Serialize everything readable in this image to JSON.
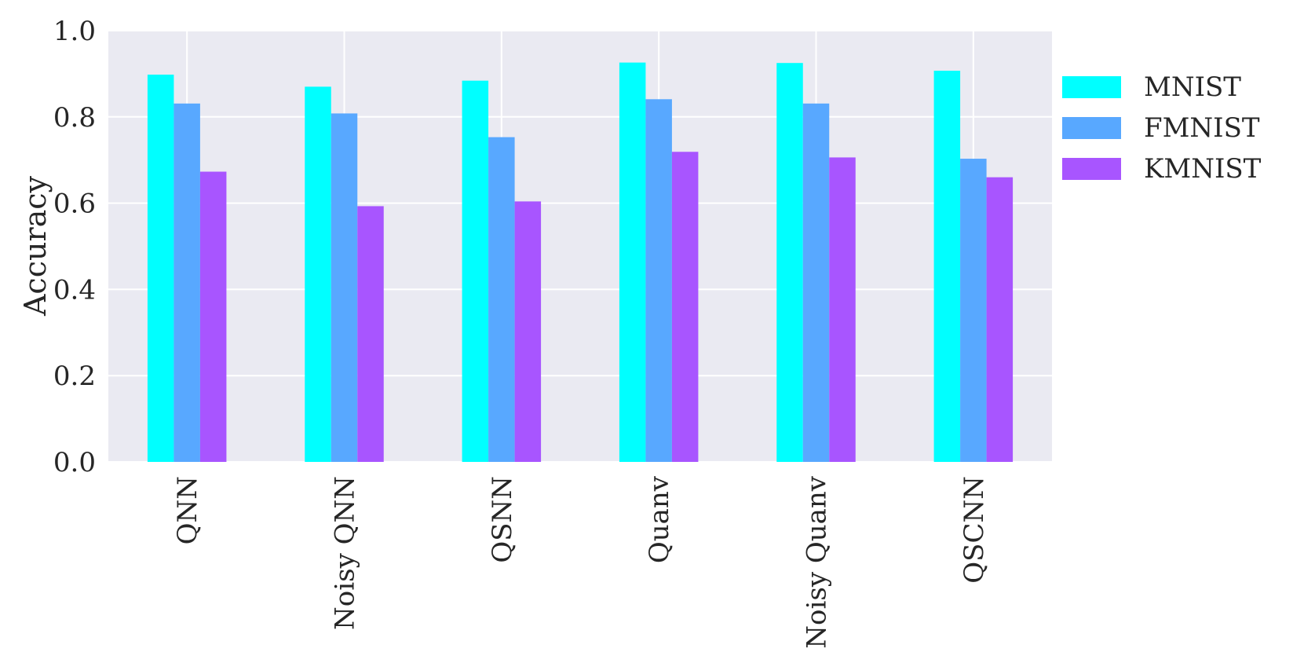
{
  "chart_data": {
    "type": "bar",
    "categories": [
      "QNN",
      "Noisy QNN",
      "QSNN",
      "Quanv",
      "Noisy Quanv",
      "QSCNN"
    ],
    "series": [
      {
        "name": "MNIST",
        "color": "#00ffff",
        "values": [
          0.898,
          0.87,
          0.884,
          0.926,
          0.925,
          0.907
        ]
      },
      {
        "name": "FMNIST",
        "color": "#58a8ff",
        "values": [
          0.831,
          0.808,
          0.753,
          0.841,
          0.831,
          0.703
        ]
      },
      {
        "name": "KMNIST",
        "color": "#a855ff",
        "values": [
          0.673,
          0.593,
          0.604,
          0.719,
          0.706,
          0.66
        ]
      }
    ],
    "xlabel": "",
    "ylabel": "Accuracy",
    "ylim": [
      0,
      1.0
    ],
    "yticks": [
      "0.0",
      "0.2",
      "0.4",
      "0.6",
      "0.8",
      "1.0"
    ],
    "grid": true,
    "legend_position": "right-outside-top",
    "plot_background": "#eaeaf2",
    "grid_color": "#ffffff",
    "text_color": "#262626"
  }
}
